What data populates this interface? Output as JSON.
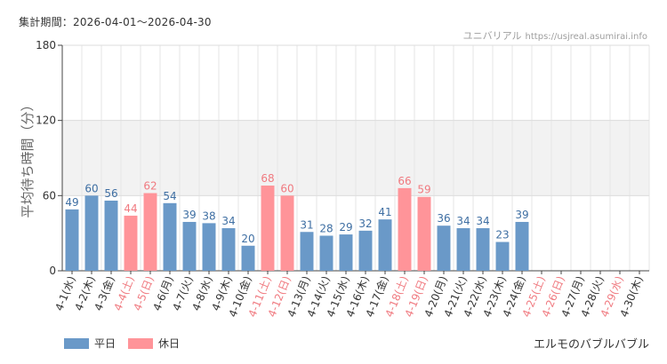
{
  "header": {
    "period_label": "集計期間：2026-04-01〜2026-04-30",
    "source_name": "ユニバリアル",
    "source_url": "https://usjreal.asumirai.info"
  },
  "attraction_name": "エルモのバブルバブル",
  "legend": {
    "weekday": "平日",
    "holiday": "休日"
  },
  "colors": {
    "weekday_bar": "#6a99c8",
    "holiday_bar": "#ff9499",
    "weekday_label": "#3f6fa3",
    "holiday_label": "#f07a80",
    "band": "#f2f2f2"
  },
  "chart_data": {
    "type": "bar",
    "ylabel": "平均待ち時間（分）",
    "ylim": [
      0,
      180
    ],
    "yticks": [
      0,
      60,
      120,
      180
    ],
    "shaded_band": [
      60,
      120
    ],
    "grid": "vertical",
    "legend_position": "bottom-left",
    "categories": [
      "4-1(水)",
      "4-2(木)",
      "4-3(金)",
      "4-4(土)",
      "4-5(日)",
      "4-6(月)",
      "4-7(火)",
      "4-8(水)",
      "4-9(木)",
      "4-10(金)",
      "4-11(土)",
      "4-12(日)",
      "4-13(月)",
      "4-14(火)",
      "4-15(水)",
      "4-16(木)",
      "4-17(金)",
      "4-18(土)",
      "4-19(日)",
      "4-20(月)",
      "4-21(火)",
      "4-22(水)",
      "4-23(木)",
      "4-24(金)",
      "4-25(土)",
      "4-26(日)",
      "4-27(月)",
      "4-28(火)",
      "4-29(水)",
      "4-30(木)"
    ],
    "day_type": [
      "weekday",
      "weekday",
      "weekday",
      "holiday",
      "holiday",
      "weekday",
      "weekday",
      "weekday",
      "weekday",
      "weekday",
      "holiday",
      "holiday",
      "weekday",
      "weekday",
      "weekday",
      "weekday",
      "weekday",
      "holiday",
      "holiday",
      "weekday",
      "weekday",
      "weekday",
      "weekday",
      "weekday",
      "holiday",
      "holiday",
      "weekday",
      "weekday",
      "holiday",
      "weekday"
    ],
    "values": [
      49,
      60,
      56,
      44,
      62,
      54,
      39,
      38,
      34,
      20,
      68,
      60,
      31,
      28,
      29,
      32,
      41,
      66,
      59,
      36,
      34,
      34,
      23,
      39,
      null,
      null,
      null,
      null,
      null,
      null
    ]
  }
}
